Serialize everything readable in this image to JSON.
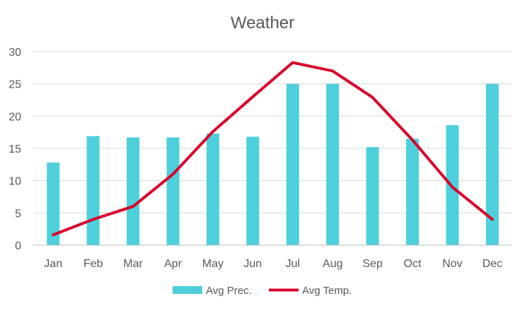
{
  "chart_data": {
    "type": "bar",
    "title": "Weather",
    "categories": [
      "Jan",
      "Feb",
      "Mar",
      "Apr",
      "May",
      "Jun",
      "Jul",
      "Aug",
      "Sep",
      "Oct",
      "Nov",
      "Dec"
    ],
    "series": [
      {
        "name": "Avg Prec.",
        "type": "bar",
        "color": "#4dd0dc",
        "values": [
          12.8,
          16.9,
          16.7,
          16.7,
          17.3,
          16.8,
          25,
          25,
          15.2,
          16.5,
          18.6,
          25
        ]
      },
      {
        "name": "Avg Temp.",
        "type": "line",
        "color": "#d9002b",
        "values": [
          1.6,
          4.0,
          6.0,
          11.0,
          17.6,
          23.0,
          28.3,
          27.0,
          22.9,
          16.3,
          9.0,
          4.0
        ]
      }
    ],
    "ylim": [
      0,
      30
    ],
    "yticks": [
      0,
      5,
      10,
      15,
      20,
      25,
      30
    ],
    "grid": true,
    "legend_position": "bottom",
    "gridline_color": "#d9d9d9",
    "axis_color": "#bfbfbf"
  }
}
